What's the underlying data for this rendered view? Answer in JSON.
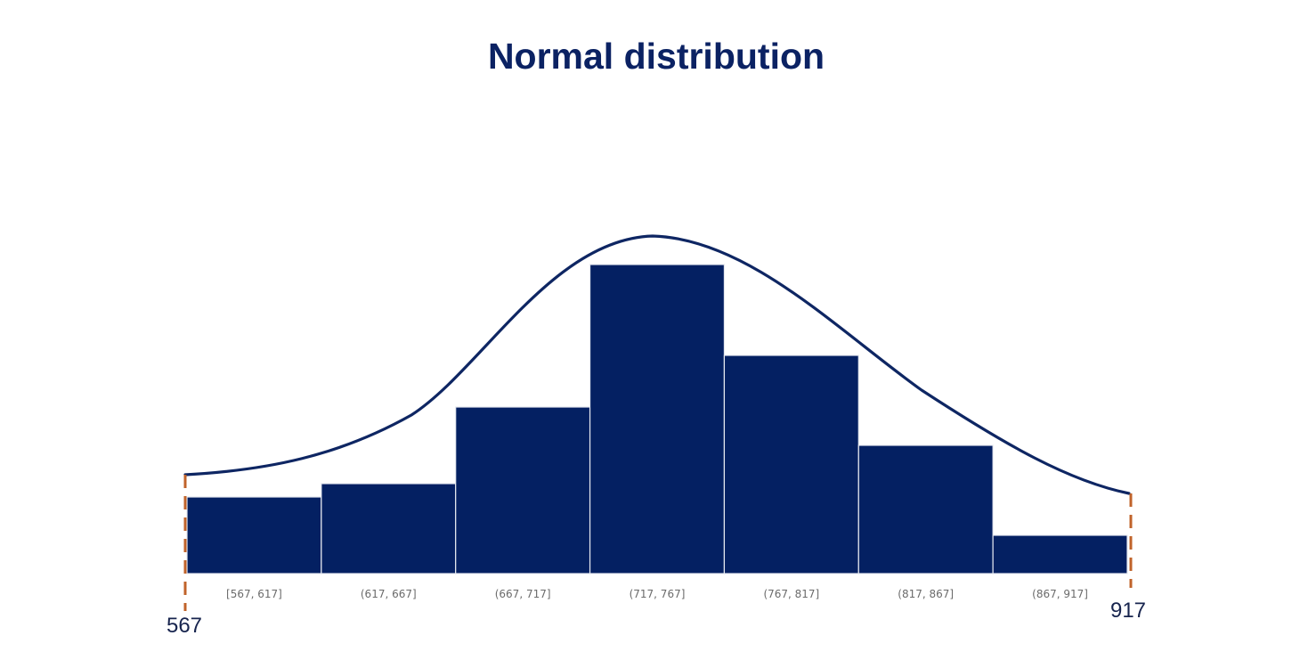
{
  "chart_data": {
    "type": "bar",
    "title": "Normal distribution",
    "categories": [
      "[567, 617]",
      "(617, 667]",
      "(667, 717]",
      "(717, 767]",
      "(767, 817]",
      "(817, 867]",
      "(867, 917]"
    ],
    "values": [
      86,
      101,
      187,
      347,
      245,
      144,
      43
    ],
    "ylim": [
      0,
      380
    ],
    "overlay": "normal-curve",
    "range": {
      "min": 567,
      "max": 917
    },
    "range_labels": {
      "min": "567",
      "max": "917"
    },
    "grid": false,
    "legend": "none"
  },
  "colors": {
    "bar_fill": "#042062",
    "bar_edge": "#e6e9f0",
    "curve": "#0e2663",
    "bound_line": "#c0632a",
    "title": "#0b2263",
    "tick_label": "#6b6b6b"
  }
}
